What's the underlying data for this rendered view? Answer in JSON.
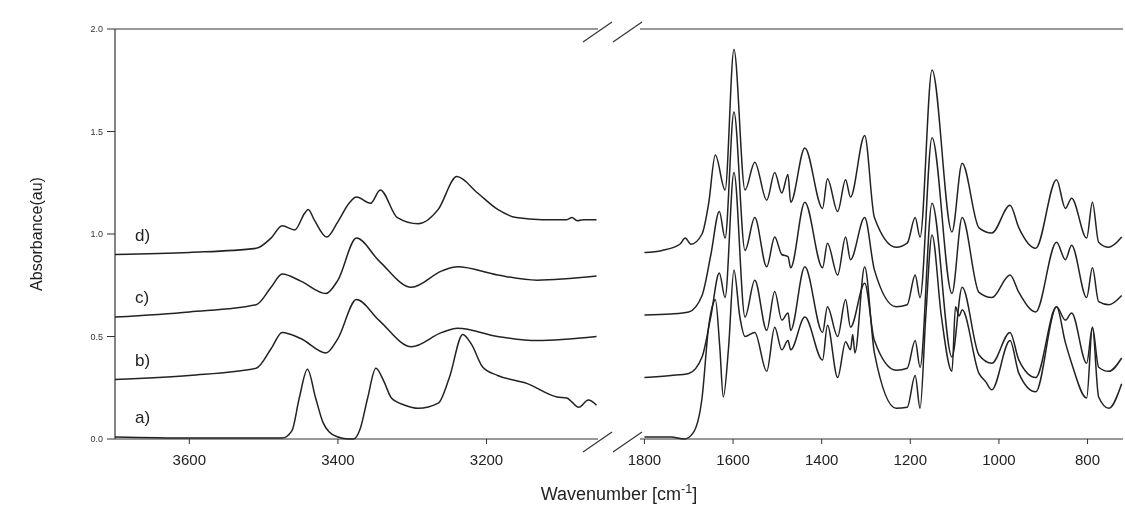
{
  "chart_data": [
    {
      "type": "line",
      "ylabel": "Absorbance(au)",
      "xlabel": "Wavenumber [cm$^{-1}$]",
      "xlim": [
        3700,
        3050
      ],
      "xticks": [
        3600,
        3400,
        3200
      ],
      "ylim": [
        0,
        2
      ],
      "yticks": [
        {
          "value": 0,
          "label": "0.0"
        },
        {
          "value": 0.5,
          "label": "0.5"
        },
        {
          "value": 1,
          "label": "1.0"
        },
        {
          "value": 1.5,
          "label": "1.5"
        },
        {
          "value": 2,
          "label": "2.0"
        }
      ],
      "grid": false,
      "marker": "none",
      "line_style": "solid",
      "series": [
        {
          "name": "a)",
          "color": "#222222",
          "x": [
            3700,
            3600,
            3512,
            3475,
            3462,
            3452,
            3441,
            3430,
            3420,
            3412,
            3400,
            3385,
            3379,
            3370,
            3360,
            3349,
            3338,
            3328,
            3310,
            3292,
            3265,
            3250,
            3232,
            3220,
            3205,
            3185,
            3145,
            3105,
            3092,
            3085,
            3076,
            3063,
            3052
          ],
          "values": [
            0.01,
            0.005,
            0.005,
            0.005,
            0.04,
            0.2,
            0.34,
            0.2,
            0.08,
            0.035,
            0.01,
            0.0,
            0.0,
            0.05,
            0.2,
            0.345,
            0.28,
            0.2,
            0.165,
            0.15,
            0.175,
            0.3,
            0.51,
            0.46,
            0.35,
            0.31,
            0.27,
            0.205,
            0.2,
            0.18,
            0.155,
            0.19,
            0.165
          ]
        },
        {
          "name": "b)",
          "color": "#222222",
          "x": [
            3700,
            3600,
            3510,
            3490,
            3475,
            3450,
            3416,
            3400,
            3375,
            3345,
            3301,
            3260,
            3239,
            3185,
            3132,
            3052
          ],
          "values": [
            0.29,
            0.31,
            0.345,
            0.44,
            0.52,
            0.49,
            0.42,
            0.49,
            0.68,
            0.58,
            0.45,
            0.52,
            0.54,
            0.5,
            0.48,
            0.5
          ]
        },
        {
          "name": "c)",
          "color": "#222222",
          "x": [
            3700,
            3600,
            3510,
            3490,
            3475,
            3450,
            3416,
            3400,
            3375,
            3345,
            3301,
            3260,
            3239,
            3185,
            3132,
            3052
          ],
          "values": [
            0.595,
            0.62,
            0.655,
            0.74,
            0.805,
            0.77,
            0.71,
            0.775,
            0.98,
            0.87,
            0.74,
            0.82,
            0.84,
            0.8,
            0.775,
            0.795
          ]
        },
        {
          "name": "d)",
          "color": "#222222",
          "x": [
            3700,
            3600,
            3510,
            3490,
            3475,
            3458,
            3445,
            3440,
            3432,
            3415,
            3400,
            3385,
            3375,
            3356,
            3343,
            3320,
            3292,
            3265,
            3240,
            3212,
            3185,
            3160,
            3125,
            3092,
            3085,
            3078,
            3070,
            3052
          ],
          "values": [
            0.9,
            0.91,
            0.93,
            0.98,
            1.04,
            1.02,
            1.1,
            1.12,
            1.07,
            0.985,
            1.06,
            1.15,
            1.18,
            1.15,
            1.215,
            1.08,
            1.05,
            1.12,
            1.28,
            1.2,
            1.12,
            1.08,
            1.07,
            1.07,
            1.08,
            1.065,
            1.07,
            1.07
          ]
        }
      ]
    },
    {
      "type": "line",
      "xlim": [
        1810,
        720
      ],
      "xticks": [
        1800,
        1600,
        1400,
        1200,
        1000,
        800
      ],
      "ylim": [
        0,
        2
      ],
      "tick_labels": "x",
      "grid": false,
      "marker": "none",
      "line_style": "solid",
      "series": [
        {
          "color": "#222222",
          "x": [
            1800,
            1740,
            1710,
            1690,
            1670,
            1655,
            1645,
            1640,
            1630,
            1622,
            1610,
            1598,
            1585,
            1573,
            1551,
            1524,
            1506,
            1490,
            1476,
            1470,
            1438,
            1398,
            1387,
            1364,
            1346,
            1335,
            1330,
            1325,
            1303,
            1281,
            1232,
            1207,
            1189,
            1178,
            1165,
            1151,
            1130,
            1106,
            1098,
            1090,
            1083,
            1045,
            1030,
            1016,
            975,
            955,
            917,
            870,
            850,
            836,
            802,
            789,
            775,
            752,
            723
          ],
          "values": [
            0.01,
            0.01,
            0.0,
            0.03,
            0.2,
            0.55,
            0.66,
            0.68,
            0.45,
            0.205,
            0.45,
            0.825,
            0.6,
            0.5,
            0.52,
            0.33,
            0.545,
            0.435,
            0.48,
            0.435,
            0.595,
            0.385,
            0.555,
            0.3,
            0.475,
            0.435,
            0.51,
            0.42,
            0.84,
            0.42,
            0.15,
            0.155,
            0.31,
            0.15,
            0.6,
            0.995,
            0.6,
            0.33,
            0.645,
            0.6,
            0.63,
            0.32,
            0.28,
            0.24,
            0.48,
            0.32,
            0.23,
            0.645,
            0.47,
            0.37,
            0.2,
            0.545,
            0.205,
            0.15,
            0.27
          ]
        },
        {
          "color": "#222222",
          "x": [
            1800,
            1740,
            1700,
            1670,
            1650,
            1631,
            1618,
            1598,
            1573,
            1551,
            1524,
            1506,
            1490,
            1476,
            1470,
            1438,
            1398,
            1387,
            1364,
            1346,
            1335,
            1303,
            1281,
            1232,
            1207,
            1189,
            1178,
            1151,
            1106,
            1083,
            1045,
            1016,
            975,
            955,
            917,
            870,
            850,
            836,
            802,
            789,
            775,
            752,
            723
          ],
          "values": [
            0.3,
            0.31,
            0.32,
            0.4,
            0.6,
            0.81,
            0.69,
            1.3,
            0.595,
            0.775,
            0.53,
            0.72,
            0.58,
            0.615,
            0.53,
            0.84,
            0.52,
            0.645,
            0.5,
            0.68,
            0.545,
            0.76,
            0.48,
            0.335,
            0.345,
            0.48,
            0.35,
            1.15,
            0.4,
            0.74,
            0.41,
            0.37,
            0.52,
            0.385,
            0.3,
            0.645,
            0.58,
            0.615,
            0.37,
            0.545,
            0.35,
            0.33,
            0.395
          ]
        },
        {
          "color": "#222222",
          "x": [
            1800,
            1740,
            1700,
            1670,
            1650,
            1631,
            1618,
            1598,
            1573,
            1551,
            1524,
            1506,
            1490,
            1476,
            1470,
            1438,
            1398,
            1387,
            1364,
            1346,
            1335,
            1303,
            1281,
            1232,
            1207,
            1189,
            1178,
            1151,
            1106,
            1083,
            1045,
            1016,
            975,
            955,
            917,
            870,
            850,
            836,
            802,
            789,
            775,
            752,
            723
          ],
          "values": [
            0.605,
            0.61,
            0.62,
            0.7,
            0.9,
            1.11,
            0.98,
            1.595,
            0.92,
            1.08,
            0.84,
            0.985,
            0.9,
            0.89,
            0.835,
            1.155,
            0.835,
            0.955,
            0.8,
            0.985,
            0.875,
            1.08,
            0.825,
            0.645,
            0.655,
            0.8,
            0.69,
            1.47,
            0.71,
            1.08,
            0.715,
            0.69,
            0.8,
            0.715,
            0.62,
            0.96,
            0.875,
            0.945,
            0.69,
            0.835,
            0.67,
            0.655,
            0.7
          ]
        },
        {
          "color": "#222222",
          "x": [
            1800,
            1760,
            1720,
            1708,
            1695,
            1670,
            1655,
            1640,
            1618,
            1598,
            1573,
            1551,
            1524,
            1506,
            1490,
            1476,
            1470,
            1438,
            1398,
            1387,
            1364,
            1346,
            1335,
            1303,
            1281,
            1232,
            1207,
            1189,
            1178,
            1151,
            1106,
            1083,
            1045,
            1016,
            975,
            955,
            917,
            870,
            850,
            836,
            802,
            789,
            775,
            752,
            723
          ],
          "values": [
            0.91,
            0.92,
            0.95,
            0.98,
            0.95,
            1.0,
            1.15,
            1.385,
            1.215,
            1.9,
            1.215,
            1.35,
            1.165,
            1.3,
            1.2,
            1.29,
            1.155,
            1.42,
            1.125,
            1.27,
            1.11,
            1.265,
            1.18,
            1.48,
            1.08,
            0.935,
            0.955,
            1.08,
            0.985,
            1.8,
            1.01,
            1.345,
            1.03,
            1.005,
            1.14,
            1.03,
            0.93,
            1.265,
            1.125,
            1.175,
            0.98,
            1.155,
            0.96,
            0.935,
            0.985
          ]
        }
      ]
    }
  ]
}
